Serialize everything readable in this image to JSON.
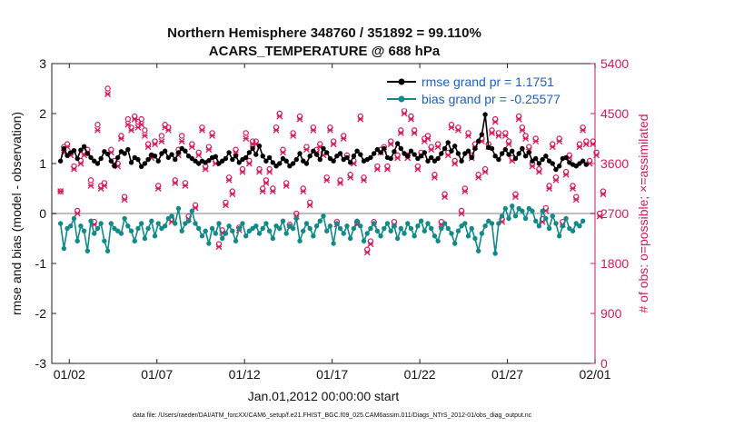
{
  "chart_data": {
    "type": "line",
    "title_line1": "Northern Hemisphere 348760 / 351892 = 99.110%",
    "title_line2": "ACARS_TEMPERATURE @ 688 hPa",
    "xlabel": "Jan.01,2012 00:00:00 start",
    "ylabel_left": "rmse and bias (model - observation)",
    "ylabel_right": "# of obs: o=possible; ×=assimilated",
    "x_range": [
      0.5,
      31.5
    ],
    "x_ticks": [
      {
        "x": 1.5,
        "label": "01/02"
      },
      {
        "x": 6.5,
        "label": "01/07"
      },
      {
        "x": 11.5,
        "label": "01/12"
      },
      {
        "x": 16.5,
        "label": "01/17"
      },
      {
        "x": 21.5,
        "label": "01/22"
      },
      {
        "x": 26.5,
        "label": "01/27"
      },
      {
        "x": 31.5,
        "label": "02/01"
      }
    ],
    "ylim_left": [
      -3,
      3
    ],
    "yticks_left": [
      "-3",
      "-2",
      "-1",
      "0",
      "1",
      "2",
      "3"
    ],
    "ylim_right": [
      0,
      5400
    ],
    "yticks_right": [
      "0",
      "900",
      "1800",
      "2700",
      "3600",
      "4500",
      "5400"
    ],
    "zero_line": 0,
    "legend": [
      {
        "label": "rmse grand pr = 1.1751",
        "color": "#000000"
      },
      {
        "label": "bias grand pr = -0.25577",
        "color": "#138a8a"
      }
    ],
    "footnote": "data file: /Users/raeder/DAI/ATM_forcXX/CAM6_setup/f.e21.FHIST_BGC.f09_025.CAM6assim.011/Diags_NTrS_2012-01/obs_diag_output.nc",
    "colors": {
      "rmse": "#000000",
      "bias": "#138a8a",
      "obs": "#d6195a",
      "zero": "#bfbfbf",
      "right_axis": "#d6195a"
    },
    "series": [
      {
        "name": "rmse",
        "values": [
          1.05,
          1.3,
          1.16,
          1.22,
          1.26,
          1.1,
          1.27,
          1.34,
          1.2,
          1.12,
          1.05,
          1.0,
          1.1,
          1.24,
          1.19,
          1.05,
          0.95,
          1.12,
          1.24,
          1.2,
          1.28,
          1.02,
          1.12,
          1.08,
          0.94,
          1.0,
          1.08,
          1.17,
          1.15,
          1.05,
          1.2,
          1.25,
          1.12,
          1.18,
          1.08,
          1.22,
          1.3,
          1.25,
          1.15,
          1.1,
          1.05,
          1.0,
          1.05,
          1.02,
          1.06,
          1.12,
          1.14,
          1.0,
          1.05,
          1.1,
          1.22,
          1.08,
          1.15,
          1.02,
          1.08,
          1.12,
          1.22,
          1.3,
          1.18,
          1.35,
          1.15,
          1.05,
          1.12,
          1.02,
          0.95,
          1.0,
          1.1,
          1.05,
          0.95,
          1.0,
          1.08,
          1.2,
          1.05,
          1.0,
          1.15,
          1.25,
          1.18,
          1.08,
          1.3,
          1.22,
          1.1,
          1.05,
          1.15,
          1.2,
          1.08,
          1.12,
          1.02,
          1.15,
          1.25,
          1.18,
          1.05,
          1.08,
          1.12,
          1.2,
          1.28,
          1.22,
          1.3,
          1.12,
          1.1,
          1.24,
          1.4,
          1.3,
          1.2,
          1.15,
          1.25,
          1.18,
          1.1,
          1.15,
          1.22,
          1.05,
          1.12,
          1.05,
          1.1,
          1.2,
          1.3,
          1.42,
          1.25,
          1.35,
          1.2,
          1.05,
          1.2,
          1.25,
          1.12,
          1.3,
          1.45,
          1.58,
          1.98,
          1.32,
          1.3,
          1.15,
          1.08,
          1.2,
          1.28,
          1.18,
          1.25,
          1.1,
          1.2,
          1.3,
          1.15,
          1.22,
          1.05,
          1.1,
          1.0,
          1.08,
          1.15,
          1.05,
          1.0,
          0.88,
          0.95,
          1.1,
          1.12,
          1.02,
          0.98,
          0.95,
          1.0,
          1.05,
          0.98
        ]
      },
      {
        "name": "bias",
        "values": [
          -0.2,
          -0.7,
          -0.3,
          -0.25,
          -0.1,
          -0.55,
          -0.25,
          -0.35,
          -0.75,
          -0.15,
          -0.4,
          -0.3,
          -0.2,
          -0.55,
          -0.75,
          -0.2,
          -0.3,
          -0.35,
          -0.4,
          -0.1,
          -0.25,
          -0.35,
          -0.55,
          -0.3,
          -0.2,
          -0.5,
          -0.3,
          -0.15,
          -0.45,
          -0.2,
          -0.3,
          -0.25,
          -0.1,
          -0.05,
          -0.2,
          0.1,
          -0.35,
          -0.2,
          -0.15,
          0.05,
          -0.2,
          -0.3,
          -0.45,
          -0.35,
          -0.6,
          -0.3,
          -0.4,
          -0.2,
          -0.5,
          -0.4,
          -0.25,
          -0.35,
          -0.55,
          -0.3,
          -0.2,
          -0.45,
          -0.35,
          -0.3,
          -0.25,
          -0.4,
          -0.3,
          -0.2,
          -0.35,
          -0.5,
          -0.25,
          -0.3,
          -0.15,
          -0.4,
          -0.25,
          -0.3,
          -0.1,
          -0.55,
          -0.35,
          -0.2,
          -0.3,
          -0.45,
          -0.25,
          -0.15,
          -0.05,
          -0.35,
          -0.25,
          -0.6,
          -0.2,
          -0.3,
          -0.4,
          -0.25,
          -0.5,
          -0.3,
          -0.15,
          -0.25,
          -0.55,
          -0.4,
          -0.3,
          -0.2,
          -0.35,
          -0.45,
          -0.3,
          -0.2,
          -0.35,
          -0.25,
          -0.5,
          -0.3,
          -0.4,
          -0.2,
          -0.3,
          -0.45,
          -0.25,
          -0.15,
          -0.35,
          -0.2,
          -0.3,
          -0.45,
          -0.55,
          -0.3,
          -0.2,
          -0.3,
          -0.4,
          -0.6,
          -0.35,
          -0.25,
          -0.2,
          -0.45,
          -0.3,
          -0.5,
          -0.75,
          -0.4,
          -0.25,
          -0.15,
          -0.2,
          -0.8,
          -0.2,
          -0.05,
          0.1,
          -0.1,
          0.15,
          -0.05,
          0.1,
          0.05,
          -0.1,
          0.1,
          0.05,
          -0.15,
          -0.25,
          0.05,
          -0.1,
          -0.3,
          -0.05,
          -0.2,
          -0.45,
          -0.25,
          -0.1,
          -0.3,
          -0.35,
          -0.2,
          -0.25,
          -0.15
        ]
      },
      {
        "name": "obs_possible",
        "values": [
          3100,
          3900,
          3950,
          3780,
          3550,
          2750,
          3650,
          3820,
          3850,
          3300,
          2550,
          4300,
          3200,
          3250,
          4950,
          3850,
          3650,
          3600,
          4100,
          3000,
          4400,
          4250,
          4450,
          4350,
          4400,
          4200,
          3950,
          3750,
          4000,
          3200,
          4100,
          4300,
          4250,
          2600,
          3300,
          3850,
          4100,
          3250,
          2650,
          3950,
          2850,
          3800,
          4250,
          3550,
          3900,
          4150,
          3650,
          2150,
          2400,
          2900,
          3350,
          3100,
          3850,
          2450,
          3500,
          4150,
          3650,
          4000,
          4000,
          3500,
          3150,
          3300,
          3500,
          3150,
          4250,
          4500,
          3850,
          3250,
          2500,
          4150,
          2700,
          4450,
          3150,
          3900,
          2900,
          4250,
          3850,
          3950,
          3800,
          3350,
          4250,
          4000,
          2550,
          3300,
          4100,
          3750,
          3400,
          3650,
          2550,
          4450,
          3350,
          2050,
          2200,
          2550,
          3550,
          3850,
          3900,
          3550,
          4000,
          2550,
          3750,
          4200,
          4550,
          3750,
          4450,
          4200,
          3550,
          3800,
          4050,
          4100,
          3900,
          3400,
          3950,
          2550,
          3050,
          3800,
          4300,
          3650,
          4250,
          2750,
          3150,
          4150,
          3750,
          3950,
          3400,
          4050,
          3500,
          3950,
          4200,
          4400,
          4150,
          2600,
          4150,
          4000,
          3700,
          3050,
          4450,
          4250,
          4100,
          3900,
          3600,
          4050,
          3500,
          2600,
          2800,
          3200,
          3950,
          3350,
          4050,
          2550,
          3450,
          3750,
          3200,
          3000,
          3950,
          4250,
          4000,
          3650,
          4000,
          3800,
          2700,
          3100
        ]
      },
      {
        "name": "obs_assimilated",
        "values": [
          3100,
          3800,
          3900,
          3750,
          3500,
          2700,
          3600,
          3750,
          3800,
          3200,
          2500,
          4200,
          3150,
          3200,
          4850,
          3800,
          3600,
          3550,
          4050,
          2950,
          4300,
          4200,
          4400,
          4250,
          4300,
          4100,
          3900,
          3700,
          3950,
          3150,
          4000,
          4250,
          4200,
          2550,
          3250,
          3750,
          4000,
          3200,
          2600,
          3900,
          2800,
          3750,
          4200,
          3500,
          3850,
          4100,
          3600,
          2100,
          2350,
          2850,
          3300,
          3050,
          3800,
          2400,
          3450,
          4050,
          3600,
          3950,
          3950,
          3450,
          3100,
          3250,
          3450,
          3100,
          4200,
          4450,
          3800,
          3200,
          2450,
          4100,
          2650,
          4400,
          3100,
          3850,
          2850,
          4200,
          3800,
          3900,
          3750,
          3300,
          4200,
          3950,
          2500,
          3250,
          4050,
          3700,
          3350,
          3600,
          2500,
          4400,
          3300,
          2000,
          2150,
          2500,
          3500,
          3800,
          3850,
          3500,
          3950,
          2500,
          3700,
          4150,
          4500,
          3700,
          4400,
          4150,
          3500,
          3750,
          4000,
          4050,
          3850,
          3350,
          3900,
          2500,
          3000,
          3750,
          4250,
          3600,
          4200,
          2700,
          3100,
          4100,
          3700,
          3900,
          3350,
          4000,
          3450,
          3900,
          4150,
          4350,
          4100,
          2550,
          4100,
          3950,
          3650,
          3000,
          4400,
          4200,
          4050,
          3850,
          3550,
          4000,
          3450,
          2550,
          2750,
          3150,
          3900,
          3300,
          4000,
          2500,
          3400,
          3700,
          3150,
          2950,
          3900,
          4200,
          3950,
          3600,
          3950,
          3750,
          2650,
          3050
        ]
      }
    ]
  }
}
